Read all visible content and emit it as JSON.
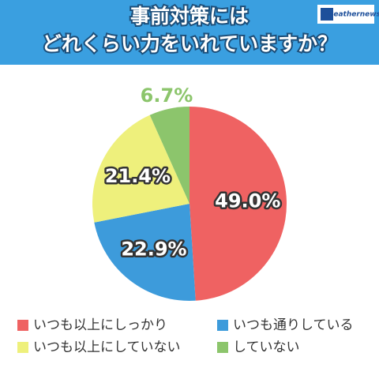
{
  "chart_data": {
    "type": "pie",
    "title": [
      "事前対策には",
      "どれくらい力をいれていますか？"
    ],
    "categories": [
      "いつも以上にしっかり",
      "いつも通りしている",
      "いつも以上にしていない",
      "していない"
    ],
    "values": [
      49.0,
      22.9,
      21.4,
      6.7
    ],
    "value_labels": [
      "49.0%",
      "22.9%",
      "21.4%",
      "6.7%"
    ],
    "colors": [
      "#ef6262",
      "#3d9bdb",
      "#eef07c",
      "#8cc56c"
    ]
  },
  "logo": "weathernews"
}
